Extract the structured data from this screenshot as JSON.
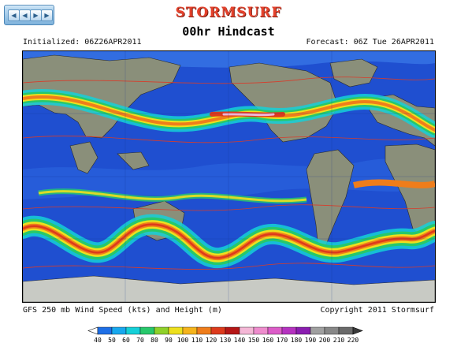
{
  "brand": "STORMSURF",
  "title": "00hr Hindcast",
  "initialized": "Initialized: 06Z26APR2011",
  "forecast": "Forecast: 06Z Tue 26APR2011",
  "caption": "GFS 250 mb Wind Speed (kts) and Height (m)",
  "copyright": "Copyright 2011 Stormsurf",
  "nav": {
    "buttons": [
      {
        "name": "first-frame",
        "icon": "first-icon",
        "glyph": "◀"
      },
      {
        "name": "previous-frame",
        "icon": "previous-icon",
        "glyph": "◀"
      },
      {
        "name": "next-frame",
        "icon": "next-icon",
        "glyph": "▶"
      },
      {
        "name": "last-frame",
        "icon": "last-icon",
        "glyph": "▶"
      }
    ]
  },
  "legend": {
    "labels": [
      "40",
      "50",
      "60",
      "70",
      "80",
      "90",
      "100",
      "110",
      "120",
      "130",
      "140",
      "150",
      "160",
      "170",
      "180",
      "190",
      "200",
      "210",
      "220"
    ],
    "colors": [
      "#1e6fe6",
      "#18a8ee",
      "#15d0d8",
      "#27c86b",
      "#8fd12a",
      "#ede01e",
      "#f5b41c",
      "#ef7d1b",
      "#dd3a1c",
      "#b51616",
      "#f4b7d6",
      "#ee8ccd",
      "#dc5cc8",
      "#b532c0",
      "#8a1db0",
      "#a0a0a0",
      "#878787",
      "#6a6a6a"
    ],
    "left_cap": "#ffffff",
    "right_cap": "#3a3a3a"
  },
  "map": {
    "ocean_color": "#1f4fd0",
    "land_color": "#8a8f7a",
    "ice_color": "#c8cac4",
    "jet_colors": [
      "#15d0d8",
      "#27c86b",
      "#ede01e",
      "#ef7d1b",
      "#dd3a1c",
      "#f4b7d6"
    ]
  }
}
